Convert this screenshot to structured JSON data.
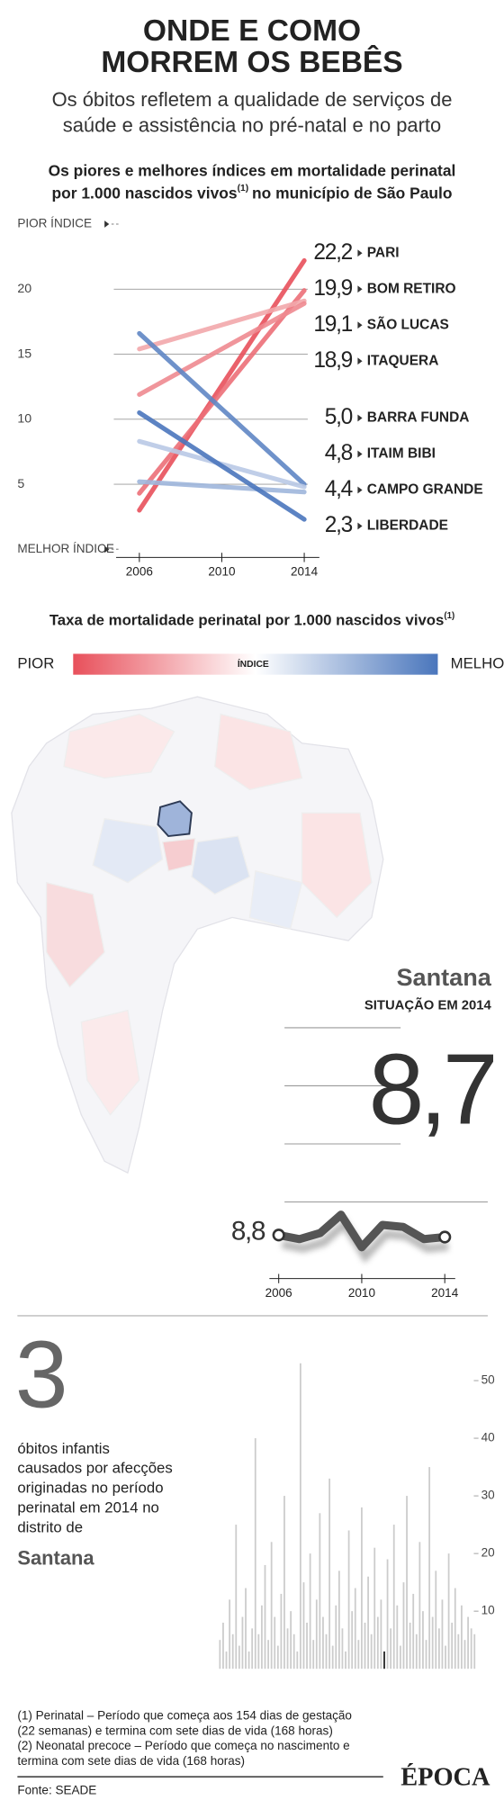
{
  "header": {
    "title_lines": [
      "ONDE E COMO",
      "MORREM OS BEBÊS"
    ],
    "subtitle_lines": [
      "Os óbitos refletem a qualidade de serviços de",
      "saúde e assistência no pré-natal e no parto"
    ]
  },
  "chart_data": [
    {
      "type": "line",
      "title_lines": [
        "Os piores e melhores índices em mortalidade perinatal",
        "por 1.000 nascidos vivos"
      ],
      "title_note": "(1)",
      "title_tail": "no município de São Paulo",
      "x": [
        2006,
        2014
      ],
      "xlim": [
        2006,
        2014
      ],
      "xticks": [
        2006,
        2010,
        2014
      ],
      "ylim": [
        0,
        25
      ],
      "yticks": [
        {
          "value": 0,
          "label": "MELHOR ÍNDICE"
        },
        5,
        10,
        15,
        20,
        {
          "value": 25,
          "label": "PIOR ÍNDICE"
        }
      ],
      "grid": true,
      "series": [
        {
          "name": "PARI",
          "color": "#e8505b",
          "values": [
            3.0,
            22.2
          ],
          "value_labels": [
            null,
            "22,2"
          ]
        },
        {
          "name": "BOM RETIRO",
          "color": "#ec6f78",
          "values": [
            4.3,
            19.9
          ],
          "value_labels": [
            null,
            "19,9"
          ]
        },
        {
          "name": "SÃO LUCAS",
          "color": "#f2a7ab",
          "values": [
            15.4,
            19.1
          ],
          "value_labels": [
            null,
            "19,1"
          ]
        },
        {
          "name": "ITAQUERA",
          "color": "#ee8990",
          "values": [
            11.9,
            18.9
          ],
          "value_labels": [
            null,
            "18,9"
          ]
        },
        {
          "name": "BARRA FUNDA",
          "color": "#5f86c4",
          "values": [
            16.6,
            5.0
          ],
          "value_labels": [
            null,
            "5,0"
          ]
        },
        {
          "name": "ITAIM BIBI",
          "color": "#b9c9e5",
          "values": [
            8.3,
            4.8
          ],
          "value_labels": [
            null,
            "4,8"
          ]
        },
        {
          "name": "CAMPO GRANDE",
          "color": "#9fb6dc",
          "values": [
            5.2,
            4.4
          ],
          "value_labels": [
            null,
            "4,4"
          ]
        },
        {
          "name": "LIBERDADE",
          "color": "#4a76bc",
          "values": [
            10.5,
            2.3
          ],
          "value_labels": [
            null,
            "2,3"
          ]
        }
      ]
    },
    {
      "type": "line",
      "title": "Santana",
      "subtitle": "SITUAÇÃO EM 2014",
      "x": [
        2006,
        2007,
        2008,
        2009,
        2010,
        2011,
        2012,
        2013,
        2014
      ],
      "xlim": [
        2006,
        2014
      ],
      "xticks": [
        2006,
        2010,
        2014
      ],
      "ylim": [
        7,
        11
      ],
      "color": "#555555",
      "values": [
        8.8,
        8.6,
        8.9,
        9.8,
        8.2,
        9.3,
        9.2,
        8.6,
        8.7
      ],
      "value_labels": [
        "8,8",
        null,
        null,
        null,
        null,
        null,
        null,
        null,
        "8,7"
      ]
    },
    {
      "type": "bar",
      "caption_lines": [
        "óbitos infantis",
        "causados por afecções",
        "originadas no período",
        "perinatal em 2014 no",
        "distrito de"
      ],
      "district": "Santana",
      "ylim": [
        0,
        54
      ],
      "yticks": [
        10,
        20,
        30,
        40,
        50
      ],
      "values": [
        5,
        8,
        3,
        12,
        6,
        25,
        4,
        9,
        14,
        3,
        7,
        40,
        6,
        11,
        18,
        5,
        22,
        9,
        4,
        13,
        30,
        7,
        10,
        6,
        3,
        53,
        15,
        8,
        20,
        5,
        12,
        27,
        9,
        6,
        33,
        4,
        11,
        17,
        7,
        3,
        24,
        10,
        14,
        5,
        28,
        8,
        16,
        6,
        21,
        9,
        12,
        3,
        19,
        7,
        25,
        11,
        4,
        15,
        30,
        8,
        13,
        6,
        22,
        10,
        5,
        35,
        9,
        17,
        7,
        12,
        4,
        20,
        8,
        14,
        6,
        11,
        5,
        9,
        7,
        6
      ],
      "colors": [
        "#cccccc",
        "#cccccc",
        "#cccccc",
        "#cccccc",
        "#cccccc",
        "#cccccc",
        "#cccccc",
        "#cccccc",
        "#cccccc",
        "#cccccc",
        "#cccccc",
        "#cccccc",
        "#cccccc",
        "#cccccc",
        "#cccccc",
        "#cccccc",
        "#cccccc",
        "#cccccc",
        "#cccccc",
        "#cccccc",
        "#cccccc",
        "#cccccc",
        "#cccccc",
        "#cccccc",
        "#cccccc",
        "#cccccc",
        "#cccccc",
        "#cccccc",
        "#cccccc",
        "#cccccc",
        "#cccccc",
        "#cccccc",
        "#cccccc",
        "#cccccc",
        "#cccccc",
        "#cccccc",
        "#cccccc",
        "#cccccc",
        "#cccccc",
        "#cccccc",
        "#cccccc",
        "#cccccc",
        "#cccccc",
        "#cccccc",
        "#cccccc",
        "#cccccc",
        "#cccccc",
        "#cccccc",
        "#cccccc",
        "#cccccc",
        "#cccccc",
        "#222222",
        "#cccccc",
        "#cccccc",
        "#cccccc",
        "#cccccc",
        "#cccccc",
        "#cccccc",
        "#cccccc",
        "#cccccc",
        "#cccccc",
        "#cccccc",
        "#cccccc",
        "#cccccc",
        "#cccccc",
        "#cccccc",
        "#cccccc",
        "#cccccc",
        "#cccccc",
        "#cccccc",
        "#cccccc",
        "#cccccc",
        "#cccccc",
        "#cccccc",
        "#cccccc",
        "#cccccc",
        "#cccccc",
        "#cccccc",
        "#cccccc",
        "#cccccc"
      ]
    }
  ],
  "map": {
    "title": "Taxa de mortalidade perinatal por 1.000 nascidos vivos",
    "title_note": "(1)",
    "legend": {
      "low": "PIOR",
      "mid": "ÍNDICE",
      "high": "MELHOR",
      "colors": [
        "#e8505b",
        "#ffffff",
        "#4a76bc"
      ]
    }
  },
  "footer": {
    "notes": [
      "(1) Perinatal – Período que começa aos 154 dias de gestação",
      "(22 semanas) e termina com sete dias de vida (168 horas)",
      "(2) Neonatal precoce – Período que começa no nascimento e",
      "termina com sete dias de vida (168 horas)"
    ],
    "source": "Fonte: SEADE",
    "logo": "ÉPOCA"
  }
}
